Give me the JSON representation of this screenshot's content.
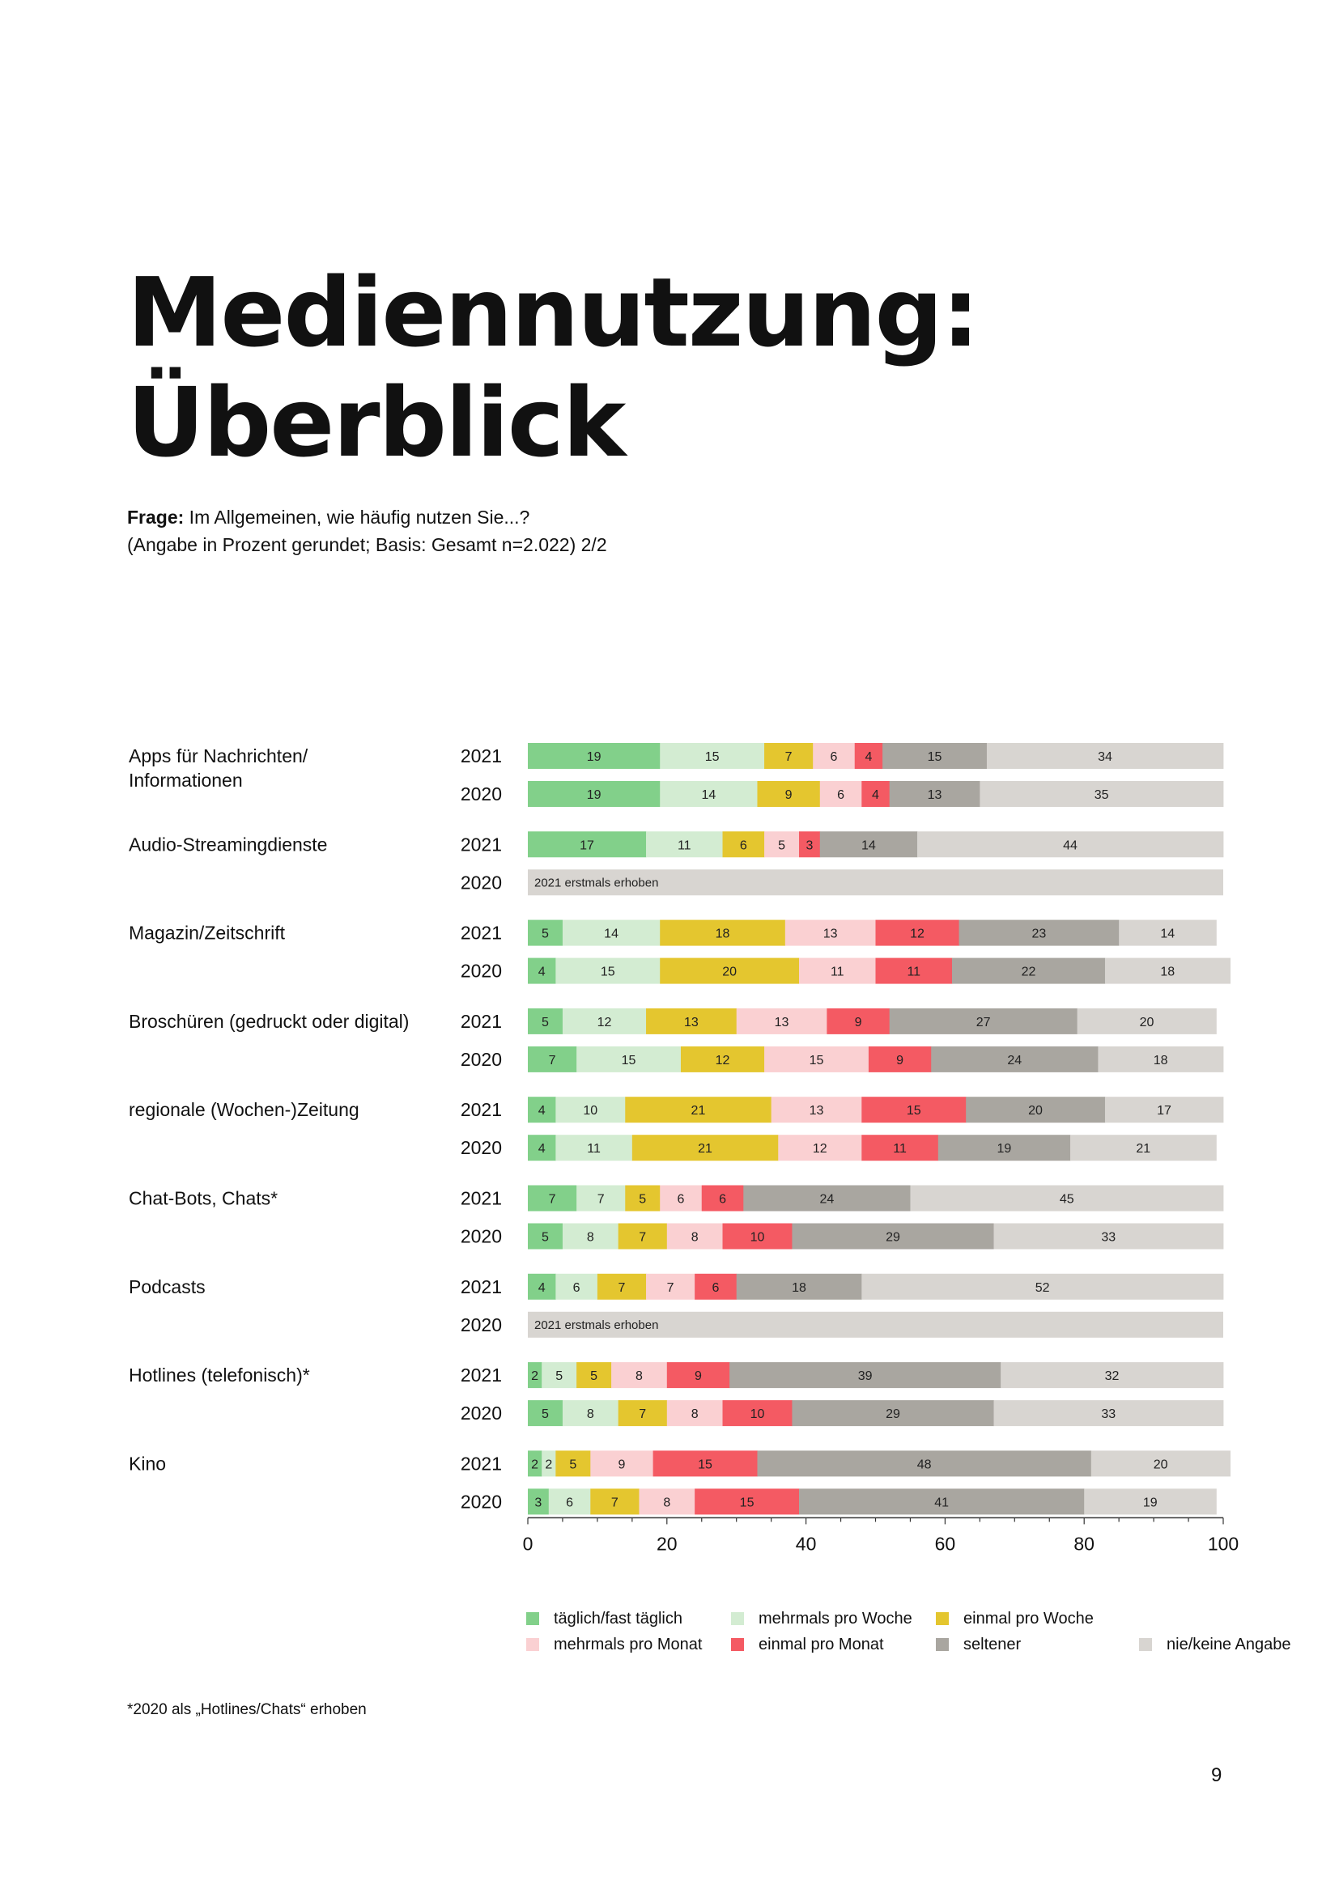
{
  "header": {
    "title_line1": "Mediennutzung:",
    "title_line2": "Überblick",
    "question_label": "Frage:",
    "question_text": " Im Allgemeinen, wie häufig nutzen Sie...?",
    "question_note": "(Angabe in Prozent gerundet; Basis: Gesamt n=2.022) 2/2"
  },
  "footnote": "*2020 als „Hotlines/Chats“ erhoben",
  "page_number": "9",
  "chart_data": {
    "type": "bar",
    "orientation": "horizontal",
    "stacked": true,
    "unit": "%",
    "xlim": [
      0,
      100
    ],
    "x_ticks": [
      0,
      20,
      40,
      60,
      80,
      100
    ],
    "grid": false,
    "legend_position": "bottom",
    "series": [
      {
        "name": "täglich/fast täglich",
        "color": "#82d08a"
      },
      {
        "name": "mehrmals pro Woche",
        "color": "#d3ecd2"
      },
      {
        "name": "einmal pro Woche",
        "color": "#e4c62f"
      },
      {
        "name": "mehrmals pro Monat",
        "color": "#fad0d2"
      },
      {
        "name": "einmal pro Monat",
        "color": "#f45a63"
      },
      {
        "name": "seltener",
        "color": "#a9a6a0"
      },
      {
        "name": "nie/keine Angabe",
        "color": "#d8d5d1"
      }
    ],
    "not_collected_label": "2021 erstmals erhoben",
    "categories": [
      {
        "label": [
          "Apps für Nachrichten/",
          "Informationen"
        ],
        "rows": [
          {
            "year": "2021",
            "values": [
              19,
              15,
              7,
              6,
              4,
              15,
              34
            ]
          },
          {
            "year": "2020",
            "values": [
              19,
              14,
              9,
              6,
              4,
              13,
              35
            ]
          }
        ]
      },
      {
        "label": [
          "Audio-Streamingdienste"
        ],
        "rows": [
          {
            "year": "2021",
            "values": [
              17,
              11,
              6,
              5,
              3,
              14,
              44
            ]
          },
          {
            "year": "2020",
            "values": null
          }
        ]
      },
      {
        "label": [
          "Magazin/Zeitschrift"
        ],
        "rows": [
          {
            "year": "2021",
            "values": [
              5,
              14,
              18,
              13,
              12,
              23,
              14
            ]
          },
          {
            "year": "2020",
            "values": [
              4,
              15,
              20,
              11,
              11,
              22,
              18
            ]
          }
        ]
      },
      {
        "label": [
          "Broschüren (gedruckt oder digital)"
        ],
        "rows": [
          {
            "year": "2021",
            "values": [
              5,
              12,
              13,
              13,
              9,
              27,
              20
            ]
          },
          {
            "year": "2020",
            "values": [
              7,
              15,
              12,
              15,
              9,
              24,
              18
            ]
          }
        ]
      },
      {
        "label": [
          "regionale (Wochen-)Zeitung"
        ],
        "rows": [
          {
            "year": "2021",
            "values": [
              4,
              10,
              21,
              13,
              15,
              20,
              17
            ]
          },
          {
            "year": "2020",
            "values": [
              4,
              11,
              21,
              12,
              11,
              19,
              21
            ]
          }
        ]
      },
      {
        "label": [
          "Chat-Bots, Chats*"
        ],
        "rows": [
          {
            "year": "2021",
            "values": [
              7,
              7,
              5,
              6,
              6,
              24,
              45
            ]
          },
          {
            "year": "2020",
            "values": [
              5,
              8,
              7,
              8,
              10,
              29,
              33
            ]
          }
        ]
      },
      {
        "label": [
          "Podcasts"
        ],
        "rows": [
          {
            "year": "2021",
            "values": [
              4,
              6,
              7,
              7,
              6,
              18,
              52
            ]
          },
          {
            "year": "2020",
            "values": null
          }
        ]
      },
      {
        "label": [
          "Hotlines (telefonisch)*"
        ],
        "rows": [
          {
            "year": "2021",
            "values": [
              2,
              5,
              5,
              8,
              9,
              39,
              32
            ]
          },
          {
            "year": "2020",
            "values": [
              5,
              8,
              7,
              8,
              10,
              29,
              33
            ]
          }
        ]
      },
      {
        "label": [
          "Kino"
        ],
        "rows": [
          {
            "year": "2021",
            "values": [
              2,
              2,
              5,
              9,
              15,
              48,
              20
            ]
          },
          {
            "year": "2020",
            "values": [
              3,
              6,
              7,
              8,
              15,
              41,
              19
            ]
          }
        ]
      }
    ]
  }
}
